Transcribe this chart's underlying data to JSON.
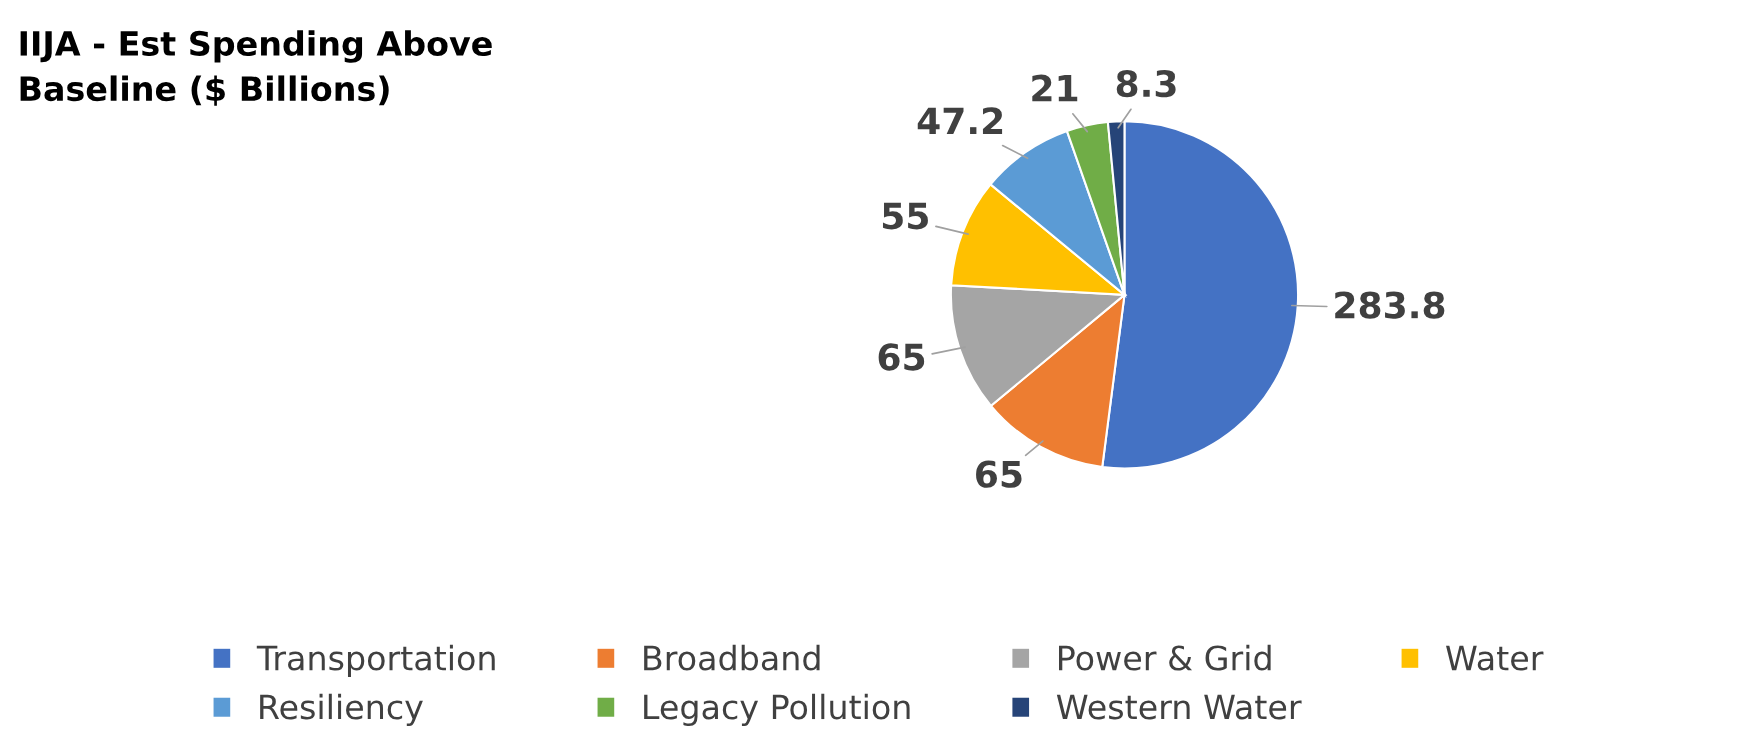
{
  "chart_data": {
    "type": "pie",
    "title": "IIJA - Est Spending Above\nBaseline ($ Billions)",
    "categories": [
      "Transportation",
      "Broadband",
      "Power & Grid",
      "Water",
      "Resiliency",
      "Legacy Pollution",
      "Western Water"
    ],
    "values": [
      283.8,
      65,
      65,
      55,
      47.2,
      21,
      8.3
    ],
    "colors": [
      "#4472c4",
      "#ed7d31",
      "#a5a5a5",
      "#ffc000",
      "#5b9bd5",
      "#70ad47",
      "#264478"
    ],
    "data_labels": true,
    "legend": "bottom"
  }
}
